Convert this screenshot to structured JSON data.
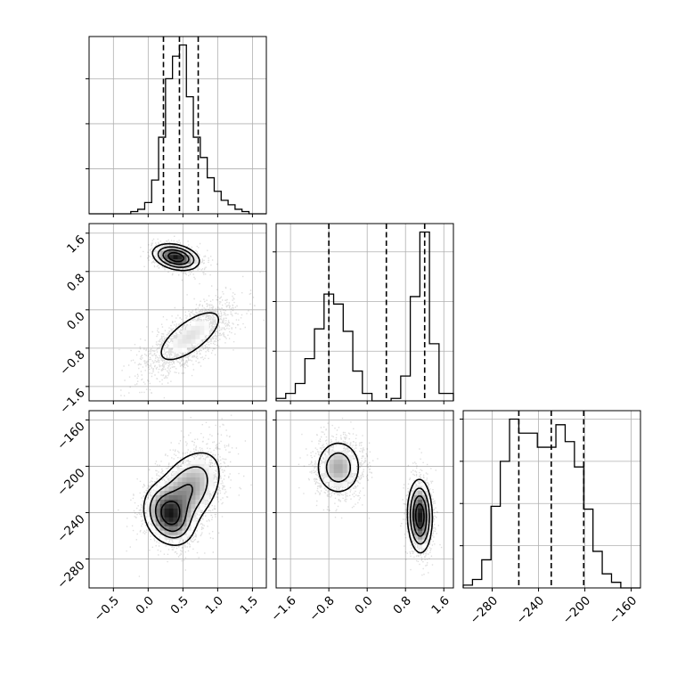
{
  "chart_data": {
    "type": "corner",
    "grid": true,
    "params": [
      {
        "id": "p0",
        "range": [
          -0.85,
          1.7
        ],
        "ticks": [
          -0.5,
          0.0,
          0.5,
          1.0,
          1.5
        ],
        "tick_labels": [
          "−0.5",
          "0.0",
          "0.5",
          "1.0",
          "1.5"
        ],
        "quantiles": [
          0.22,
          0.45,
          0.72
        ],
        "histogram": {
          "edges": [
            -0.85,
            -0.75,
            -0.65,
            -0.55,
            -0.45,
            -0.35,
            -0.25,
            -0.15,
            -0.05,
            0.05,
            0.15,
            0.25,
            0.35,
            0.45,
            0.55,
            0.65,
            0.75,
            0.85,
            0.95,
            1.05,
            1.15,
            1.25,
            1.35,
            1.45,
            1.55,
            1.7
          ],
          "counts": [
            0,
            0,
            0,
            0,
            0,
            0,
            1,
            2,
            5,
            15,
            34,
            60,
            70,
            75,
            52,
            34,
            25,
            16,
            10,
            6,
            4,
            2,
            1,
            0,
            0
          ]
        }
      },
      {
        "id": "p1",
        "range": [
          -1.9,
          1.8
        ],
        "ticks": [
          -1.6,
          -0.8,
          0.0,
          0.8,
          1.6
        ],
        "tick_labels": [
          "−1.6",
          "−0.8",
          "0.0",
          "0.8",
          "1.6"
        ],
        "quantiles": [
          -0.8,
          0.4,
          1.2
        ],
        "histogram": {
          "edges": [
            -1.9,
            -1.7,
            -1.5,
            -1.3,
            -1.1,
            -0.9,
            -0.7,
            -0.5,
            -0.3,
            -0.1,
            0.1,
            0.3,
            0.5,
            0.7,
            0.9,
            1.1,
            1.3,
            1.5,
            1.8
          ],
          "counts": [
            1,
            3,
            7,
            17,
            29,
            43,
            39,
            28,
            12,
            3,
            0,
            0,
            1,
            10,
            42,
            68,
            23,
            3
          ]
        }
      },
      {
        "id": "p2",
        "range": [
          -305,
          -152
        ],
        "ticks": [
          -280,
          -240,
          -200,
          -160
        ],
        "tick_labels": [
          "−280",
          "−240",
          "−200",
          "−160"
        ],
        "quantiles": [
          -257,
          -229,
          -201
        ],
        "histogram": {
          "edges": [
            -305,
            -297,
            -289,
            -281,
            -273,
            -265,
            -257,
            -249,
            -241,
            -233,
            -225,
            -217,
            -209,
            -201,
            -193,
            -185,
            -177,
            -169,
            -161,
            -152
          ],
          "counts": [
            1,
            3,
            10,
            29,
            45,
            60,
            55,
            55,
            50,
            50,
            58,
            52,
            43,
            28,
            13,
            5,
            2,
            0,
            0
          ]
        }
      }
    ],
    "joint": [
      {
        "x": "p0",
        "y": "p1",
        "modes": [
          {
            "mean": [
              0.4,
              1.1
            ],
            "sd": [
              0.17,
              0.14
            ],
            "rho": -0.3,
            "weight": 0.45
          },
          {
            "mean": [
              0.6,
              -0.55
            ],
            "sd": [
              0.32,
              0.38
            ],
            "rho": 0.7,
            "weight": 0.55
          }
        ]
      },
      {
        "x": "p0",
        "y": "p2",
        "modes": [
          {
            "mean": [
              0.3,
              -243
            ],
            "sd": [
              0.18,
              13
            ],
            "rho": -0.3,
            "weight": 0.35
          },
          {
            "mean": [
              0.55,
              -222
            ],
            "sd": [
              0.28,
              20
            ],
            "rho": 0.45,
            "weight": 0.65
          }
        ]
      },
      {
        "x": "p1",
        "y": "p2",
        "modes": [
          {
            "mean": [
              -0.6,
              -201
            ],
            "sd": [
              0.26,
              13
            ],
            "rho": 0.0,
            "weight": 0.45
          },
          {
            "mean": [
              1.1,
              -243
            ],
            "sd": [
              0.13,
              16
            ],
            "rho": -0.05,
            "weight": 0.55
          }
        ]
      }
    ]
  }
}
